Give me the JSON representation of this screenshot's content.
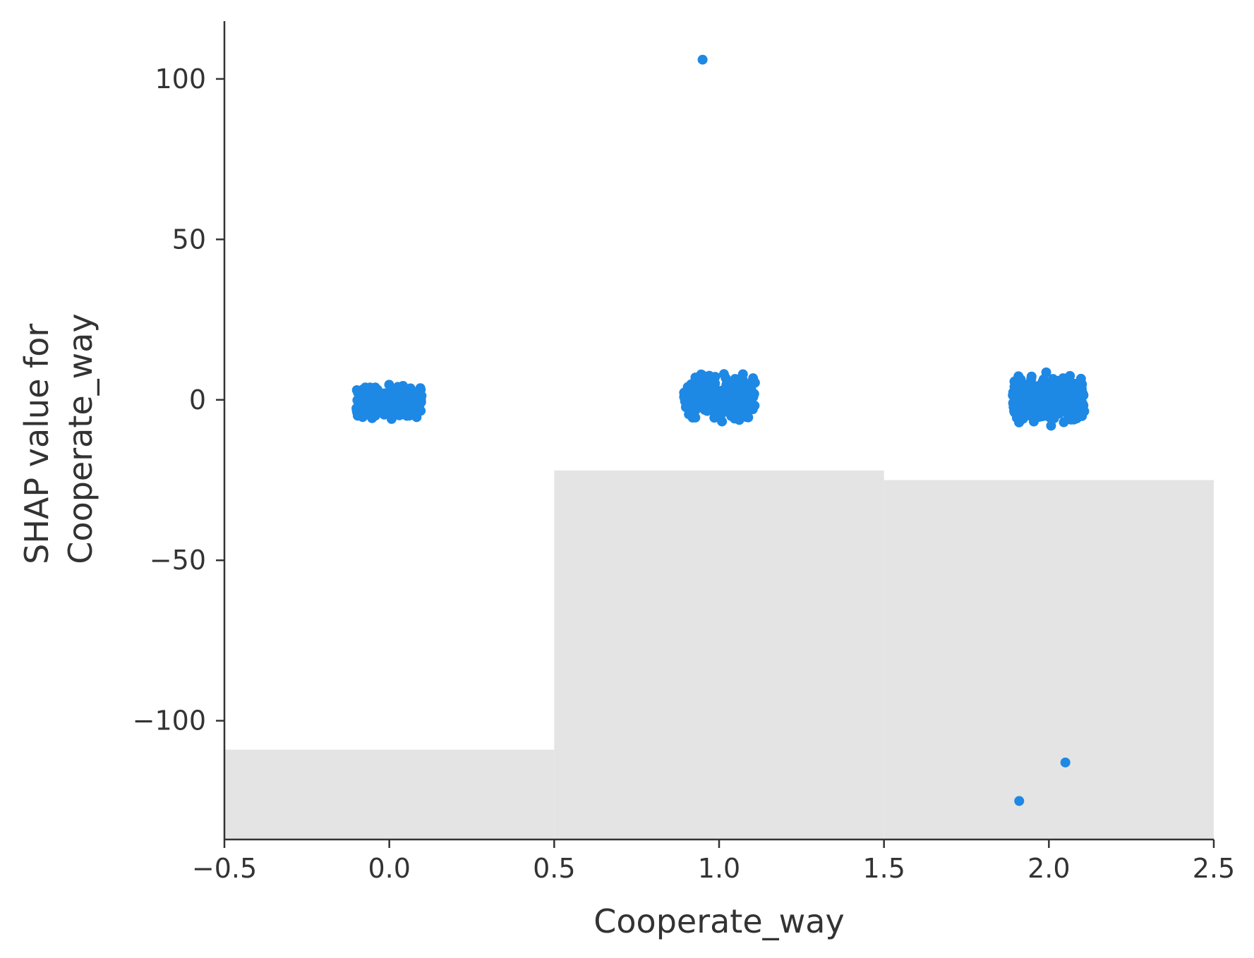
{
  "chart_data": {
    "type": "scatter",
    "title": "",
    "xlabel": "Cooperate_way",
    "ylabel_lines": [
      "SHAP value for",
      "Cooperate_way"
    ],
    "xlim": [
      -0.5,
      2.5
    ],
    "ylim": [
      -137,
      118
    ],
    "xticks": [
      -0.5,
      0.0,
      0.5,
      1.0,
      1.5,
      2.0,
      2.5
    ],
    "xtick_labels": [
      "−0.5",
      "0.0",
      "0.5",
      "1.0",
      "1.5",
      "2.0",
      "2.5"
    ],
    "yticks": [
      100,
      50,
      0,
      -50,
      -100
    ],
    "ytick_labels": [
      "100",
      "50",
      "0",
      "−50",
      "−100"
    ],
    "point_color": "#1E88E5",
    "histogram_color": "#E4E4E4",
    "grid": false,
    "histogram": [
      {
        "x_start": -0.5,
        "x_end": 0.5,
        "top": -109
      },
      {
        "x_start": 0.5,
        "x_end": 1.5,
        "top": -22
      },
      {
        "x_start": 1.5,
        "x_end": 2.5,
        "top": -25
      }
    ],
    "clusters": [
      {
        "x_center": 0.0,
        "x_jitter": 0.1,
        "y_min": -7,
        "y_max": 6,
        "count": 260
      },
      {
        "x_center": 1.0,
        "x_jitter": 0.11,
        "y_min": -8,
        "y_max": 10,
        "count": 260
      },
      {
        "x_center": 2.0,
        "x_jitter": 0.11,
        "y_min": -11,
        "y_max": 10,
        "count": 260
      }
    ],
    "outliers": [
      {
        "x": 0.95,
        "y": 106
      },
      {
        "x": 2.05,
        "y": -113
      },
      {
        "x": 1.91,
        "y": -125
      }
    ]
  }
}
